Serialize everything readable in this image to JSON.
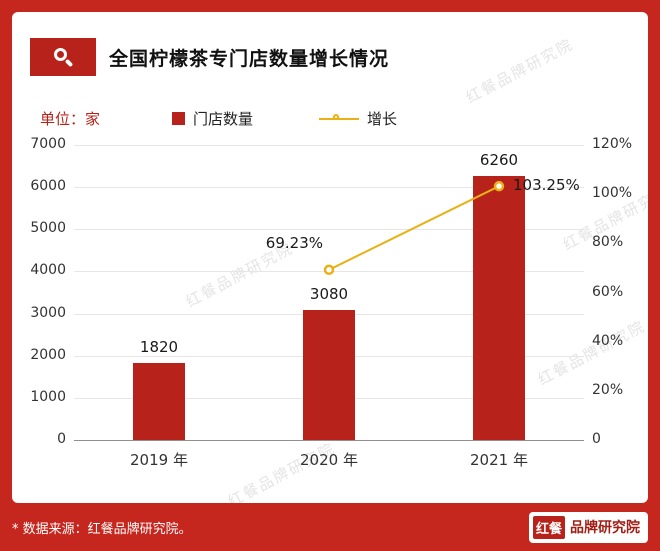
{
  "header": {
    "title": "全国柠檬茶专门店数量增长情况"
  },
  "icons": {
    "title_icon": "magnifier"
  },
  "legend": {
    "unit_label": "单位：家",
    "bar_label": "门店数量",
    "line_label": "增长"
  },
  "footer": {
    "source": "* 数据来源：红餐品牌研究院。",
    "logo_primary": "红餐",
    "logo_secondary": "品牌研究院"
  },
  "watermark_text": "红餐品牌研究院",
  "colors": {
    "background_red": "#C5271E",
    "bar_red": "#B7231A",
    "line_yellow": "#E9B115"
  },
  "chart_data": {
    "type": "bar",
    "categories": [
      "2019 年",
      "2020 年",
      "2021 年"
    ],
    "series": [
      {
        "name": "门店数量",
        "type": "bar",
        "axis": "left",
        "values": [
          1820,
          3080,
          6260
        ]
      },
      {
        "name": "增长",
        "type": "line",
        "axis": "right",
        "values": [
          null,
          69.23,
          103.25
        ],
        "labels": [
          "",
          "69.23%",
          "103.25%"
        ]
      }
    ],
    "bar_value_labels": [
      "1820",
      "3080",
      "6260"
    ],
    "left_axis": {
      "min": 0,
      "max": 7000,
      "step": 1000,
      "ticks": [
        "0",
        "1000",
        "2000",
        "3000",
        "4000",
        "5000",
        "6000",
        "7000"
      ]
    },
    "right_axis": {
      "min": 0,
      "max": 120,
      "step": 20,
      "ticks": [
        "0",
        "20%",
        "40%",
        "60%",
        "80%",
        "100%",
        "120%"
      ]
    },
    "grid": true,
    "legend_position": "top",
    "title": "全国柠檬茶专门店数量增长情况"
  }
}
